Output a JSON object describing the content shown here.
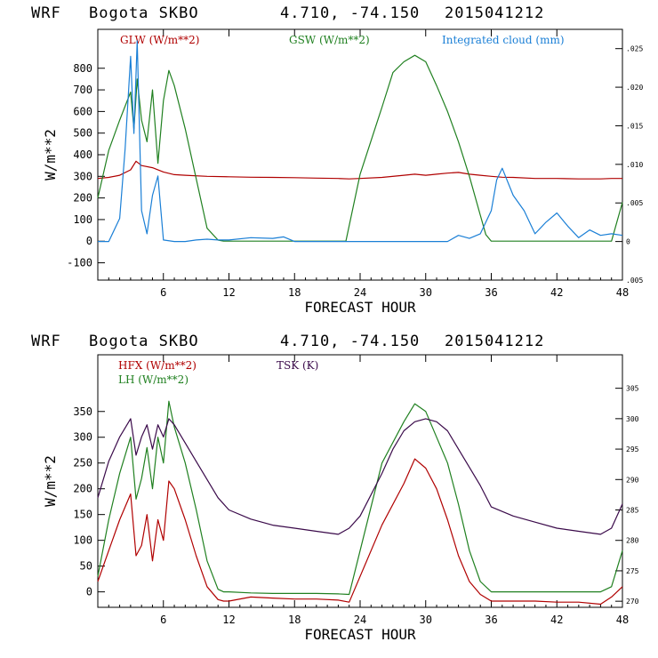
{
  "chart_data": [
    {
      "type": "line",
      "header": [
        "WRF",
        "Bogota SKBO",
        "4.710, -74.150",
        "2015041212"
      ],
      "xlabel": "FORECAST HOUR",
      "ylabel": "W/m**2",
      "xlim": [
        0,
        48
      ],
      "xticks": [
        6,
        12,
        18,
        24,
        30,
        36,
        42,
        48
      ],
      "ylim": [
        -180,
        980
      ],
      "yticks": [
        -100,
        0,
        100,
        200,
        300,
        400,
        500,
        600,
        700,
        800
      ],
      "right_ylim": [
        -0.005,
        0.0275
      ],
      "right_yticks": [
        -0.005,
        0,
        0.005,
        0.01,
        0.015,
        0.02,
        0.025
      ],
      "right_ytick_labels": [
        ".005",
        "0",
        ".005",
        ".010",
        ".015",
        ".020",
        ".025"
      ],
      "series": [
        {
          "name": "GLW (W/m**2)",
          "color": "#b00000",
          "axis": "left",
          "x": [
            0,
            1,
            2,
            3,
            3.5,
            4,
            5,
            6,
            7,
            8,
            10,
            12,
            14,
            16,
            18,
            20,
            22,
            23,
            24,
            26,
            28,
            29,
            30,
            31,
            32,
            33,
            34,
            35,
            36,
            37,
            38,
            40,
            42,
            44,
            46,
            47,
            48
          ],
          "values": [
            290,
            295,
            305,
            330,
            370,
            350,
            340,
            320,
            308,
            305,
            300,
            298,
            296,
            295,
            294,
            292,
            290,
            288,
            290,
            295,
            305,
            310,
            305,
            310,
            315,
            318,
            310,
            305,
            300,
            296,
            295,
            290,
            290,
            288,
            288,
            290,
            290
          ]
        },
        {
          "name": "GSW (W/m**2)",
          "color": "#208020",
          "axis": "left",
          "x": [
            0,
            1,
            2,
            3,
            3.3,
            3.6,
            4,
            4.5,
            5,
            5.5,
            6,
            6.5,
            7,
            8,
            9,
            10,
            11,
            11.5,
            12,
            18,
            22,
            22.7,
            24,
            26,
            27,
            28,
            29,
            30,
            31,
            32,
            33,
            34,
            35,
            35.5,
            36,
            47,
            48
          ],
          "values": [
            200,
            420,
            560,
            690,
            520,
            750,
            560,
            460,
            700,
            360,
            650,
            790,
            720,
            520,
            290,
            60,
            5,
            0,
            0,
            0,
            0,
            0,
            310,
            620,
            780,
            830,
            860,
            830,
            720,
            600,
            460,
            300,
            120,
            30,
            0,
            0,
            180
          ]
        },
        {
          "name": "Integrated cloud (mm)",
          "color": "#1a7fd6",
          "axis": "right",
          "x": [
            0,
            1,
            2,
            2.5,
            3,
            3.3,
            3.6,
            4,
            4.5,
            5,
            5.5,
            6,
            7,
            8,
            9,
            10,
            11,
            12,
            14,
            16,
            17,
            18,
            20,
            24,
            28,
            32,
            33,
            34,
            35,
            36,
            36.5,
            37,
            38,
            39,
            40,
            41,
            42,
            43,
            44,
            45,
            46,
            47,
            48
          ],
          "values": [
            0,
            0,
            0.003,
            0.012,
            0.024,
            0.014,
            0.026,
            0.004,
            0.001,
            0.006,
            0.0085,
            0.0002,
            0,
            0,
            0.0002,
            0.0003,
            0.0002,
            0.0002,
            0.0005,
            0.0004,
            0.0006,
            0,
            0,
            0,
            0,
            0,
            0.0008,
            0.0004,
            0.001,
            0.004,
            0.008,
            0.0095,
            0.006,
            0.004,
            0.001,
            0.0025,
            0.0037,
            0.002,
            0.0005,
            0.0015,
            0.0008,
            0.001,
            0.0008
          ]
        }
      ]
    },
    {
      "type": "line",
      "header": [
        "WRF",
        "Bogota SKBO",
        "4.710, -74.150",
        "2015041212"
      ],
      "xlabel": "FORECAST HOUR",
      "ylabel": "W/m**2",
      "xlim": [
        0,
        48
      ],
      "xticks": [
        6,
        12,
        18,
        24,
        30,
        36,
        42,
        48
      ],
      "ylim": [
        -30,
        460
      ],
      "yticks": [
        0,
        50,
        100,
        150,
        200,
        250,
        300,
        350
      ],
      "right_ylim": [
        269,
        310.5
      ],
      "right_yticks": [
        270,
        275,
        280,
        285,
        290,
        295,
        300,
        305
      ],
      "right_ytick_labels": [
        "270",
        "275",
        "280",
        "285",
        "290",
        "295",
        "300",
        "305"
      ],
      "series": [
        {
          "name": "HFX (W/m**2)",
          "color": "#b00000",
          "axis": "left",
          "x": [
            0,
            1,
            2,
            3,
            3.5,
            4,
            4.5,
            5,
            5.5,
            6,
            6.5,
            7,
            8,
            9,
            10,
            11,
            11.5,
            12,
            14,
            16,
            18,
            20,
            22,
            23,
            24,
            26,
            28,
            29,
            30,
            31,
            32,
            33,
            34,
            35,
            36,
            38,
            40,
            42,
            44,
            46,
            47,
            48
          ],
          "values": [
            20,
            80,
            140,
            190,
            70,
            90,
            150,
            60,
            140,
            100,
            215,
            200,
            140,
            70,
            10,
            -15,
            -18,
            -18,
            -10,
            -12,
            -14,
            -14,
            -16,
            -20,
            30,
            130,
            210,
            258,
            240,
            200,
            140,
            70,
            20,
            -5,
            -18,
            -18,
            -18,
            -20,
            -20,
            -24,
            -10,
            10
          ]
        },
        {
          "name": "LH (W/m**2)",
          "color": "#208020",
          "axis": "left",
          "x": [
            0,
            1,
            2,
            3,
            3.5,
            4,
            4.5,
            5,
            5.5,
            6,
            6.5,
            7,
            8,
            9,
            10,
            11,
            11.5,
            12,
            14,
            16,
            18,
            20,
            22,
            23,
            24,
            26,
            28,
            29,
            30,
            31,
            32,
            33,
            34,
            35,
            36,
            38,
            40,
            42,
            44,
            46,
            47,
            48
          ],
          "values": [
            30,
            140,
            230,
            300,
            180,
            220,
            280,
            200,
            300,
            250,
            370,
            320,
            250,
            160,
            60,
            5,
            0,
            0,
            -2,
            -3,
            -3,
            -3,
            -4,
            -5,
            80,
            250,
            330,
            365,
            350,
            300,
            250,
            170,
            80,
            20,
            0,
            0,
            0,
            0,
            0,
            0,
            10,
            80
          ]
        },
        {
          "name": "TSK (K)",
          "color": "#3a0a4a",
          "axis": "right",
          "x": [
            0,
            1,
            2,
            3,
            3.5,
            4,
            4.5,
            5,
            5.5,
            6,
            6.5,
            7,
            8,
            9,
            10,
            11,
            11.5,
            12,
            14,
            16,
            18,
            20,
            22,
            23,
            24,
            26,
            27,
            28,
            29,
            30,
            31,
            32,
            33,
            34,
            35,
            36,
            38,
            40,
            42,
            44,
            46,
            47,
            48
          ],
          "values": [
            287,
            293,
            297,
            300,
            294,
            297,
            299,
            295,
            299,
            297,
            300,
            299,
            296,
            293,
            290,
            287,
            286,
            285,
            283.5,
            282.5,
            282,
            281.5,
            281,
            282,
            284,
            291,
            295,
            298,
            299.5,
            300,
            299.5,
            298,
            295,
            292,
            289,
            285.5,
            284,
            283,
            282,
            281.5,
            281,
            282,
            286
          ]
        }
      ]
    }
  ]
}
